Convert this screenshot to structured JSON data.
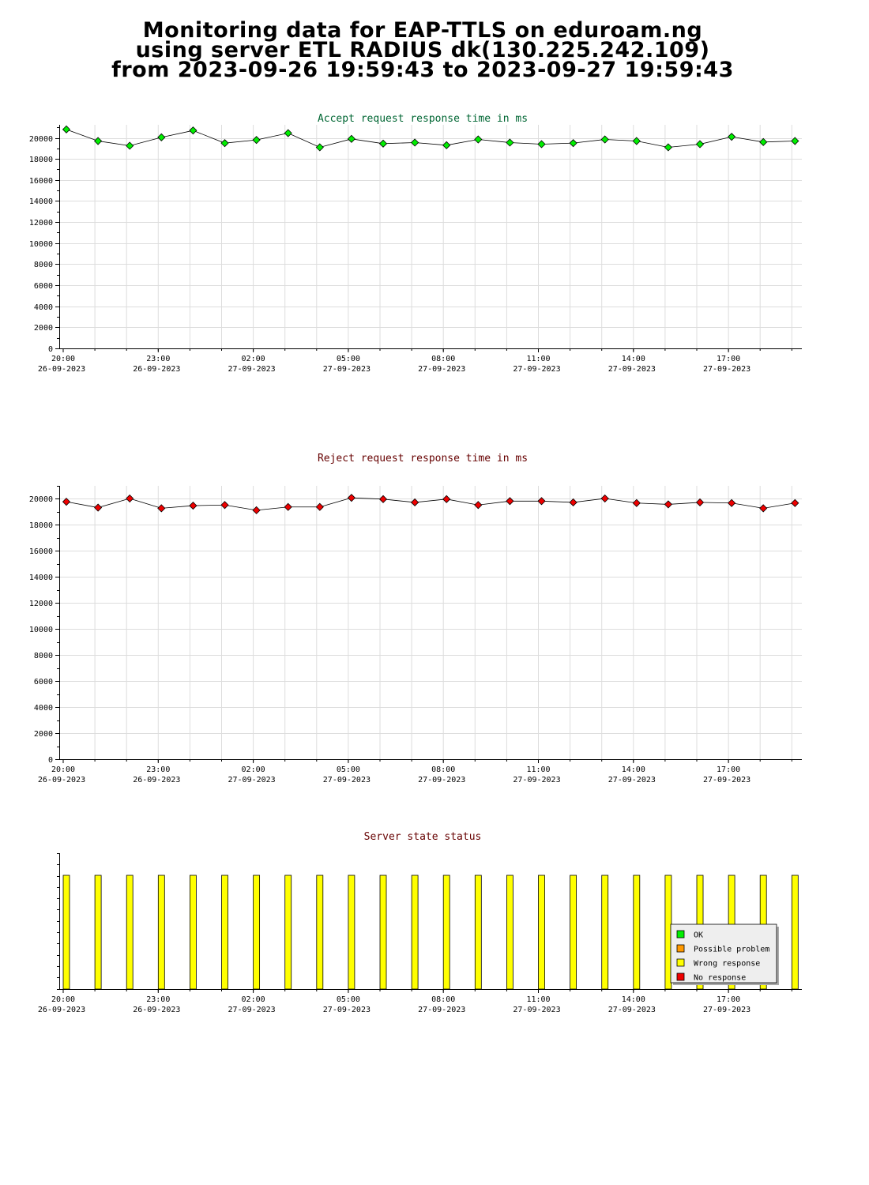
{
  "header": {
    "line1": "Monitoring data for EAP-TTLS on eduroam.ng",
    "line2": "using server ETL RADIUS dk(130.225.242.109)",
    "line3": "from 2023-09-26 19:59:43 to 2023-09-27 19:59:43"
  },
  "colors": {
    "accept_title": "#006633",
    "reject_title": "#660000",
    "status_title": "#660000",
    "accept_marker": "#00ee00",
    "reject_marker": "#ee0000",
    "status_bar": "#ffff00",
    "grid": "#dddddd"
  },
  "x_ticks": [
    {
      "time": "20:00",
      "date": "26-09-2023"
    },
    {
      "time": "23:00",
      "date": "26-09-2023"
    },
    {
      "time": "02:00",
      "date": "27-09-2023"
    },
    {
      "time": "05:00",
      "date": "27-09-2023"
    },
    {
      "time": "08:00",
      "date": "27-09-2023"
    },
    {
      "time": "11:00",
      "date": "27-09-2023"
    },
    {
      "time": "14:00",
      "date": "27-09-2023"
    },
    {
      "time": "17:00",
      "date": "27-09-2023"
    }
  ],
  "chart_data": [
    {
      "type": "line",
      "title": "Accept request response time in ms",
      "ylim": [
        0,
        21000
      ],
      "yticks": [
        0,
        2000,
        4000,
        6000,
        8000,
        10000,
        12000,
        14000,
        16000,
        18000,
        20000
      ],
      "x_hours": [
        0.1,
        1.1,
        2.1,
        3.1,
        4.1,
        5.1,
        6.1,
        7.1,
        8.1,
        9.1,
        10.1,
        11.1,
        12.1,
        13.1,
        14.1,
        15.1,
        16.1,
        17.1,
        18.1,
        19.1,
        20.1,
        21.1,
        22.1,
        23.1
      ],
      "values": [
        20800,
        19700,
        19250,
        20050,
        20700,
        19500,
        19800,
        20450,
        19100,
        19900,
        19450,
        19550,
        19300,
        19850,
        19550,
        19400,
        19500,
        19850,
        19700,
        19100,
        19400,
        20100,
        19600,
        19700
      ]
    },
    {
      "type": "line",
      "title": "Reject request response time in ms",
      "ylim": [
        0,
        21000
      ],
      "yticks": [
        0,
        2000,
        4000,
        6000,
        8000,
        10000,
        12000,
        14000,
        16000,
        18000,
        20000
      ],
      "x_hours": [
        0.1,
        1.1,
        2.1,
        3.1,
        4.1,
        5.1,
        6.1,
        7.1,
        8.1,
        9.1,
        10.1,
        11.1,
        12.1,
        13.1,
        14.1,
        15.1,
        16.1,
        17.1,
        18.1,
        19.1,
        20.1,
        21.1,
        22.1,
        23.1
      ],
      "values": [
        19750,
        19300,
        20000,
        19250,
        19450,
        19500,
        19100,
        19350,
        19350,
        20050,
        19950,
        19700,
        19950,
        19500,
        19800,
        19800,
        19700,
        20000,
        19650,
        19550,
        19700,
        19650,
        19250,
        19650
      ]
    },
    {
      "type": "bar",
      "title": "Server state status",
      "x_hours": [
        0.1,
        1.1,
        2.1,
        3.1,
        4.1,
        5.1,
        6.1,
        7.1,
        8.1,
        9.1,
        10.1,
        11.1,
        12.1,
        13.1,
        14.1,
        15.1,
        16.1,
        17.1,
        18.1,
        19.1,
        20.1,
        21.1,
        22.1,
        23.1
      ],
      "states": [
        "Wrong response",
        "Wrong response",
        "Wrong response",
        "Wrong response",
        "Wrong response",
        "Wrong response",
        "Wrong response",
        "Wrong response",
        "Wrong response",
        "Wrong response",
        "Wrong response",
        "Wrong response",
        "Wrong response",
        "Wrong response",
        "Wrong response",
        "Wrong response",
        "Wrong response",
        "Wrong response",
        "Wrong response",
        "Wrong response",
        "Wrong response",
        "Wrong response",
        "Wrong response",
        "Wrong response"
      ],
      "legend": [
        {
          "label": "OK",
          "color": "#00ee00"
        },
        {
          "label": "Possible problem",
          "color": "#ff9900"
        },
        {
          "label": "Wrong response",
          "color": "#ffff00"
        },
        {
          "label": "No response",
          "color": "#ee0000"
        }
      ]
    }
  ]
}
